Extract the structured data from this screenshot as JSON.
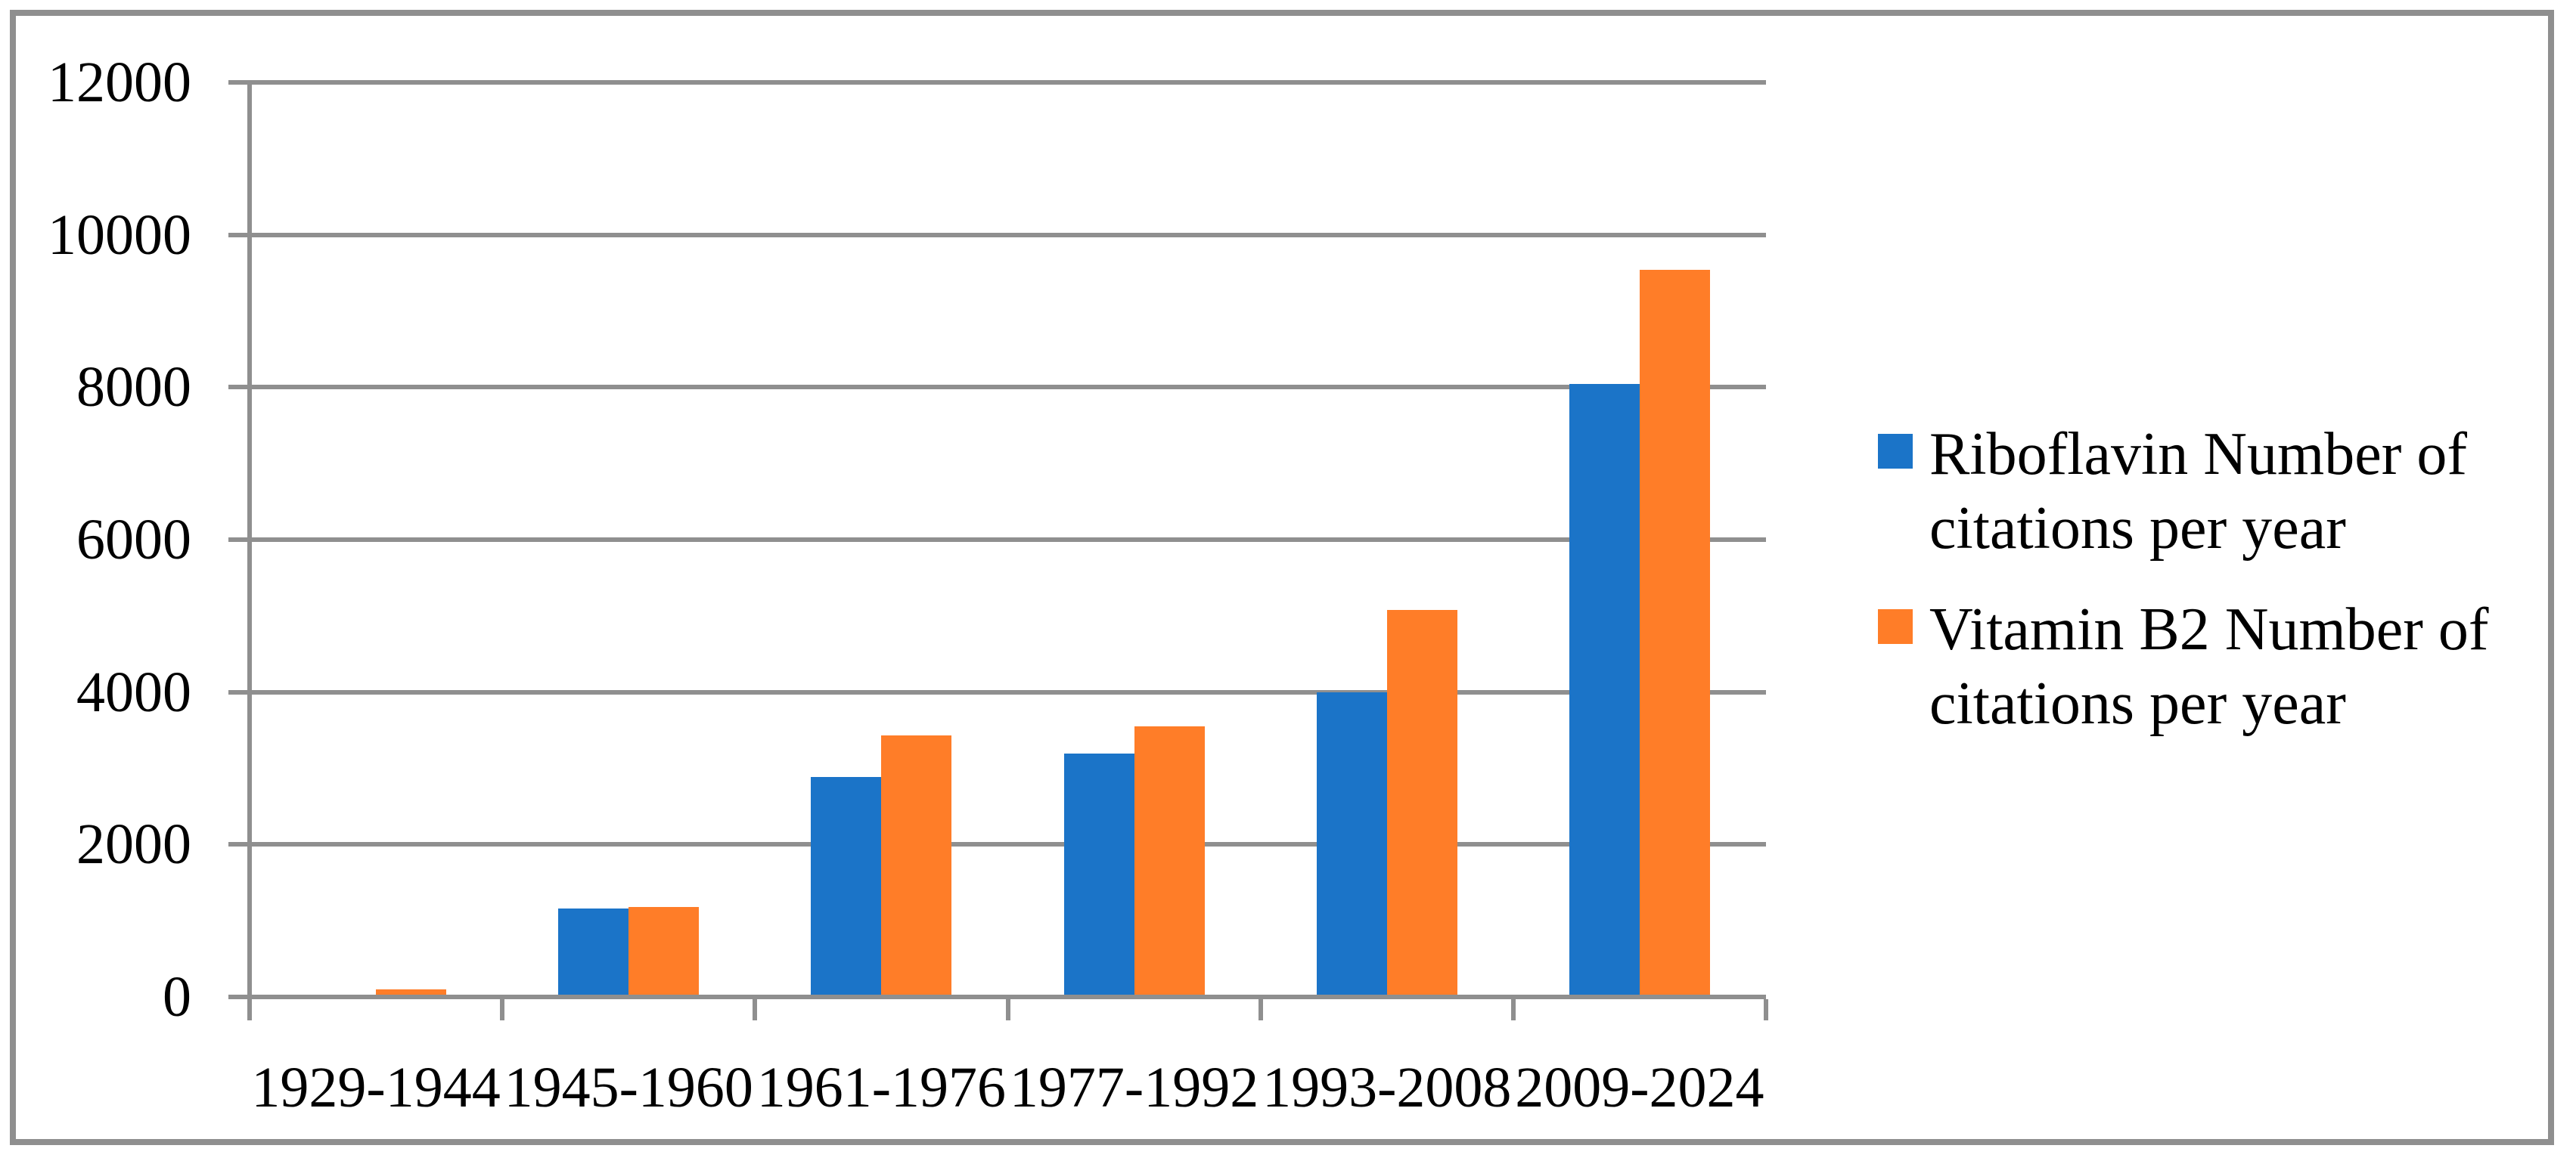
{
  "chart_data": {
    "type": "bar",
    "title": "",
    "categories": [
      "1929-1944",
      "1945-1960",
      "1961-1976",
      "1977-1992",
      "1993-2008",
      "2009-2024"
    ],
    "series": [
      {
        "name": "Riboflavin Number of citations per year",
        "legend_lines": [
          "Riboflavin Number of",
          "citations per year"
        ],
        "color": "#1B74C8",
        "values": [
          0,
          1160,
          2890,
          3190,
          4000,
          8040
        ]
      },
      {
        "name": "Vitamin B2 Number of citations per year",
        "legend_lines": [
          "Vitamin B2 Number of",
          "citations per year"
        ],
        "color": "#FF7D28",
        "values": [
          100,
          1180,
          3430,
          3550,
          5080,
          9540
        ]
      }
    ],
    "xlabel": "",
    "ylabel": "",
    "ylim": [
      0,
      12000
    ],
    "ytick_step": 2000,
    "grid": true,
    "legend_position": "right"
  },
  "colors": {
    "bar_blue": "#1B74C8",
    "bar_orange": "#FF7D28",
    "gridline": "#8F8F8F",
    "axis": "#8F8F8F",
    "border": "#8F8F8F",
    "text": "#000000",
    "background": "#FFFFFF"
  }
}
